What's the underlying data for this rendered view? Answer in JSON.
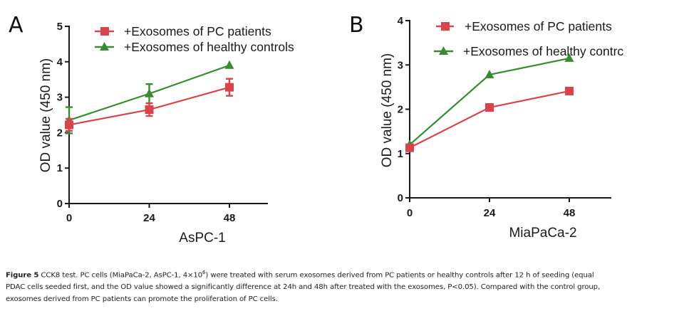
{
  "chart_data": [
    {
      "panel": "A",
      "type": "line",
      "title": "",
      "xlabel": "AsPC-1",
      "ylabel": "OD value (450 nm)",
      "x": [
        0,
        24,
        48
      ],
      "x_ticks": [
        "0",
        "24",
        "48"
      ],
      "y_ticks": [
        "0",
        "1",
        "2",
        "3",
        "4",
        "5"
      ],
      "ylim": [
        0,
        5
      ],
      "xlim": [
        0,
        60
      ],
      "grid": false,
      "legend_placement": "top-right",
      "series": [
        {
          "name": "+Exosomes of PC patients",
          "color": "#d9434b",
          "marker": "square",
          "values": [
            2.22,
            2.65,
            3.28
          ],
          "error": [
            0.17,
            0.18,
            0.24
          ]
        },
        {
          "name": "+Exosomes of healthy controls",
          "color": "#3a8a34",
          "marker": "triangle",
          "values": [
            2.35,
            3.1,
            3.9
          ],
          "error": [
            0.37,
            0.27,
            0.0
          ]
        }
      ]
    },
    {
      "panel": "B",
      "type": "line",
      "title": "",
      "xlabel": "MiaPaCa-2",
      "ylabel": "OD value (450 nm)",
      "x": [
        0,
        24,
        48
      ],
      "x_ticks": [
        "0",
        "24",
        "48"
      ],
      "y_ticks": [
        "0",
        "1",
        "2",
        "3",
        "4"
      ],
      "ylim": [
        0,
        4
      ],
      "xlim": [
        0,
        60
      ],
      "grid": false,
      "legend_placement": "top-right",
      "series": [
        {
          "name": "+Exosomes of PC patients",
          "color": "#d9434b",
          "marker": "square",
          "values": [
            1.13,
            2.04,
            2.41
          ],
          "error": [
            0,
            0,
            0
          ]
        },
        {
          "name": "+Exosomes of healthy controls",
          "legend_label_visible": "+Exosomes of healthy contrc",
          "color": "#3a8a34",
          "marker": "triangle",
          "values": [
            1.2,
            2.78,
            3.15
          ],
          "error": [
            0,
            0,
            0
          ]
        }
      ]
    }
  ],
  "panels": {
    "A": {
      "letter": "A",
      "legend": [
        "+Exosomes of PC patients",
        "+Exosomes of healthy controls"
      ]
    },
    "B": {
      "letter": "B",
      "legend": [
        "+Exosomes of PC patients",
        "+Exosomes of healthy contrc"
      ]
    }
  },
  "caption": {
    "label": "Figure 5",
    "line1": " CCK8 test. PC cells (MiaPaCa-2, AsPC-1, 4×10",
    "sup": "6",
    "line1b": ") were treated with serum exosomes derived from PC patients or healthy controls after 12 h of seeding (equal",
    "line2": "PDAC cells seeded first, and the OD value showed a significantly difference at 24h and 48h after treated with the exosomes, P<0.05). Compared with the control group,",
    "line3": "exosomes derived from PC patients can promote the proliferation of PC cells."
  }
}
